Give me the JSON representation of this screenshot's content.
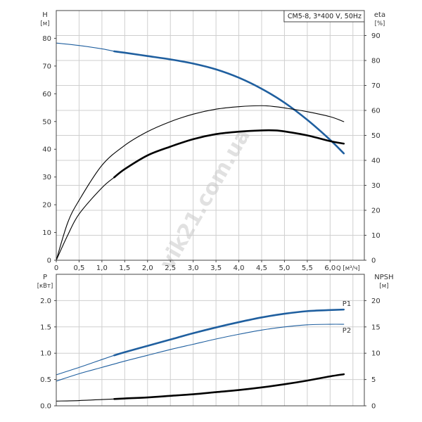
{
  "chart_data": [
    {
      "type": "line",
      "title": "CM5-8, 3*400 V, 50Hz",
      "watermark": "vik21.com.ua",
      "xlabel": "Q [м³/ч]",
      "x_ticks": [
        "0",
        "0,5",
        "1,0",
        "1,5",
        "2,0",
        "2,5",
        "3,0",
        "3,5",
        "4,0",
        "4,5",
        "5,0",
        "5,5",
        "6,0"
      ],
      "xlim": [
        0,
        6.75
      ],
      "ylabel_left": "H",
      "ylabel_left_unit": "[м]",
      "ylim_left": [
        0,
        90
      ],
      "y_ticks_left": [
        "0",
        "10",
        "20",
        "30",
        "40",
        "50",
        "60",
        "70",
        "80"
      ],
      "ylabel_right": "eta",
      "ylabel_right_unit": "[%]",
      "ylim_right": [
        0,
        100
      ],
      "y_ticks_right": [
        "0",
        "10",
        "20",
        "30",
        "40",
        "50",
        "60",
        "70",
        "80",
        "90"
      ],
      "grid": true,
      "series": [
        {
          "color": "#1f5f9f",
          "axis": "left",
          "x": [
            0,
            0.5,
            1.0,
            1.27,
            1.5,
            2.0,
            2.5,
            3.0,
            3.5,
            4.0,
            4.5,
            5.0,
            5.5,
            6.0,
            6.3
          ],
          "y": [
            78.3,
            77.4,
            76.2,
            75.3,
            74.8,
            73.6,
            72.4,
            70.9,
            68.8,
            65.8,
            61.8,
            56.8,
            50.6,
            43.4,
            38.5
          ],
          "bold_from": 1.27
        },
        {
          "color": "#000000",
          "axis": "right",
          "x": [
            0,
            0.25,
            0.5,
            1.0,
            1.5,
            2.0,
            2.5,
            3.0,
            3.5,
            4.0,
            4.5,
            4.8,
            5.0,
            5.5,
            6.0,
            6.3
          ],
          "y": [
            0,
            15,
            24,
            38,
            46,
            51.5,
            55.5,
            58.5,
            60.5,
            61.5,
            61.9,
            61.5,
            61,
            59.5,
            57.5,
            55.5
          ],
          "bold_from": 100
        },
        {
          "color": "#000000",
          "axis": "right",
          "x": [
            0,
            0.25,
            0.5,
            1.0,
            1.27,
            1.5,
            2.0,
            2.5,
            3.0,
            3.5,
            4.0,
            4.5,
            4.8,
            5.0,
            5.5,
            6.0,
            6.3
          ],
          "y": [
            0,
            10,
            18.5,
            29,
            33.2,
            36.5,
            42,
            45.5,
            48.5,
            50.5,
            51.5,
            52,
            52,
            51.6,
            50,
            47.7,
            46.7
          ],
          "bold_from": 1.27
        }
      ]
    },
    {
      "type": "line",
      "xlim": [
        0,
        6.75
      ],
      "ylabel_left": "P",
      "ylabel_left_unit": "[кВт]",
      "ylim_left": [
        0,
        2.5
      ],
      "y_ticks_left": [
        "0.0",
        "0.5",
        "1.0",
        "1.5",
        "2.0"
      ],
      "ylabel_right": "NPSH",
      "ylabel_right_unit": "[м]",
      "ylim_right": [
        0,
        25
      ],
      "y_ticks_right": [
        "0",
        "5",
        "10",
        "15",
        "20"
      ],
      "grid": true,
      "series": [
        {
          "name": "P1",
          "color": "#1f5f9f",
          "axis": "left",
          "x": [
            0,
            0.5,
            1.0,
            1.27,
            1.5,
            2.0,
            2.5,
            3.0,
            3.5,
            4.0,
            4.5,
            5.0,
            5.5,
            6.0,
            6.3
          ],
          "y": [
            0.59,
            0.73,
            0.88,
            0.96,
            1.02,
            1.14,
            1.26,
            1.38,
            1.49,
            1.59,
            1.68,
            1.75,
            1.8,
            1.82,
            1.83
          ],
          "bold_from": 1.27
        },
        {
          "name": "P2",
          "color": "#1f5f9f",
          "axis": "left",
          "x": [
            0,
            0.5,
            1.0,
            1.5,
            2.0,
            2.5,
            3.0,
            3.5,
            4.0,
            4.5,
            5.0,
            5.5,
            6.0,
            6.3
          ],
          "y": [
            0.47,
            0.61,
            0.73,
            0.85,
            0.96,
            1.07,
            1.17,
            1.27,
            1.36,
            1.44,
            1.5,
            1.54,
            1.55,
            1.55
          ],
          "bold_from": 100
        },
        {
          "color": "#000000",
          "axis": "right",
          "x": [
            0,
            0.5,
            1.0,
            1.27,
            1.5,
            2.0,
            2.5,
            3.0,
            3.5,
            4.0,
            4.5,
            5.0,
            5.5,
            6.0,
            6.3
          ],
          "y": [
            0.9,
            1.0,
            1.2,
            1.3,
            1.4,
            1.6,
            1.9,
            2.2,
            2.6,
            3.0,
            3.5,
            4.1,
            4.8,
            5.6,
            6.0
          ],
          "bold_from": 1.27
        }
      ]
    }
  ]
}
